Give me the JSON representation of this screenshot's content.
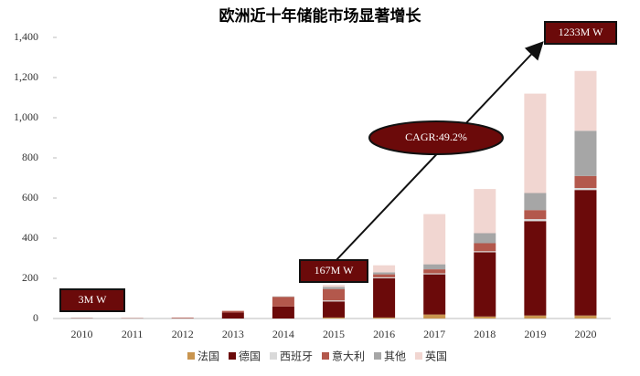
{
  "chart_data": {
    "type": "stacked_bar",
    "title": "欧洲近十年储能市场显著增长",
    "categories": [
      "2010",
      "2011",
      "2012",
      "2013",
      "2014",
      "2015",
      "2016",
      "2017",
      "2018",
      "2019",
      "2020"
    ],
    "series": [
      {
        "name": "法国",
        "color": "#c9954f",
        "values": [
          0,
          0,
          0,
          0,
          0,
          5,
          5,
          20,
          10,
          15,
          15
        ]
      },
      {
        "name": "德国",
        "color": "#6b0a0a",
        "values": [
          1,
          1,
          1,
          30,
          60,
          80,
          195,
          200,
          320,
          470,
          625
        ]
      },
      {
        "name": "西班牙",
        "color": "#d9d9d9",
        "values": [
          0,
          0,
          0,
          0,
          0,
          5,
          5,
          5,
          5,
          10,
          10
        ]
      },
      {
        "name": "意大利",
        "color": "#b3584c",
        "values": [
          1,
          1,
          3,
          8,
          48,
          57,
          15,
          20,
          40,
          45,
          60
        ]
      },
      {
        "name": "其他",
        "color": "#a6a6a6",
        "values": [
          1,
          0,
          0,
          0,
          2,
          10,
          10,
          25,
          50,
          85,
          225
        ]
      },
      {
        "name": "英国",
        "color": "#f1d6d1",
        "values": [
          0,
          0,
          2,
          2,
          0,
          10,
          35,
          250,
          220,
          495,
          298
        ]
      }
    ],
    "ylim": [
      0,
      1400
    ],
    "yticks": [
      0,
      200,
      400,
      600,
      800,
      {
        "value": 1000,
        "label": "1,000"
      },
      {
        "value": 1200,
        "label": "1,200"
      },
      {
        "value": 1400,
        "label": "1,400"
      }
    ],
    "annotations": [
      "3M W",
      "167M W",
      "1233M W",
      "CAGR:49.2%"
    ]
  }
}
